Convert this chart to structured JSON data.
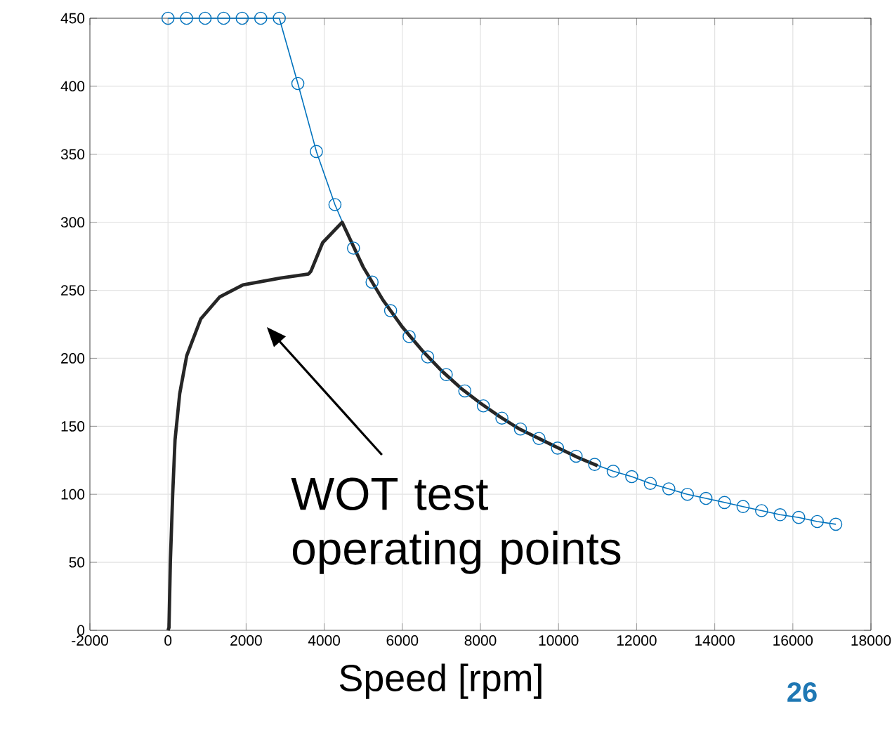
{
  "chart_data": {
    "type": "line",
    "xlabel": "Speed [rpm]",
    "xlim": [
      -2000,
      18000
    ],
    "ylim": [
      0,
      450
    ],
    "xticks": [
      -2000,
      0,
      2000,
      4000,
      6000,
      8000,
      10000,
      12000,
      14000,
      16000,
      18000
    ],
    "yticks": [
      0,
      50,
      100,
      150,
      200,
      250,
      300,
      350,
      400,
      450
    ],
    "grid": true,
    "series": [
      {
        "color": "#0072bd",
        "marker": "circle",
        "line_style": "solid",
        "x": [
          0,
          475,
          950,
          1425,
          1900,
          2375,
          2850,
          3325,
          3800,
          4275,
          4750,
          5225,
          5700,
          6175,
          6650,
          7125,
          7600,
          8075,
          8550,
          9025,
          9500,
          9975,
          10450,
          10925,
          11400,
          11875,
          12350,
          12825,
          13300,
          13775,
          14250,
          14725,
          15200,
          15675,
          16150,
          16625,
          17100
        ],
        "values": [
          450,
          450,
          450,
          450,
          450,
          450,
          450,
          402,
          352,
          313,
          281,
          256,
          235,
          216,
          201,
          188,
          176,
          165,
          156,
          148,
          141,
          134,
          128,
          122,
          117,
          113,
          108,
          104,
          100,
          97,
          94,
          91,
          88,
          85,
          83,
          80,
          78
        ]
      },
      {
        "color": "#262626",
        "marker": "none",
        "line_style": "solid",
        "x": [
          0,
          25,
          60,
          120,
          180,
          300,
          480,
          840,
          1320,
          1920,
          2880,
          3600,
          3660,
          3960,
          4460,
          5000,
          5500,
          6000,
          6500,
          7000,
          7500,
          8000,
          8500,
          9000,
          9500,
          10000,
          10500,
          11000
        ],
        "values": [
          0,
          2,
          50,
          100,
          140,
          174,
          202,
          229,
          245,
          254,
          259,
          262,
          264,
          285,
          300,
          267,
          243,
          223,
          206,
          191,
          178,
          167,
          157,
          148,
          141,
          134,
          127,
          121
        ]
      }
    ],
    "annotations": [
      "WOT test operating points",
      "26"
    ]
  }
}
